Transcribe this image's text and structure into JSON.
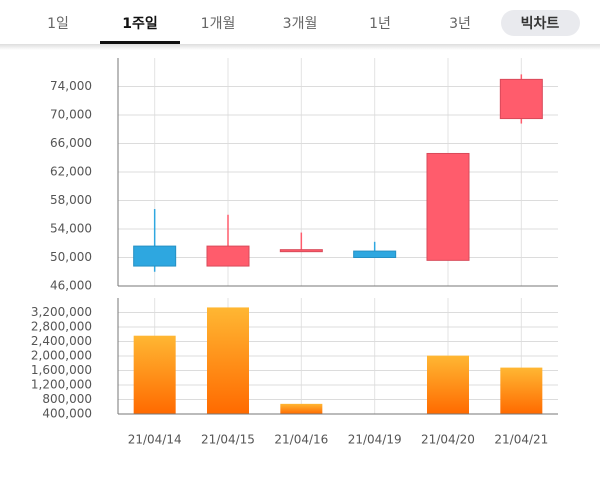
{
  "tabs": [
    "1일",
    "1주일",
    "1개월",
    "3개월",
    "1년",
    "3년",
    "빅차트"
  ],
  "active_tab": 1,
  "chart_data": [
    {
      "type": "candlestick",
      "open": [
        51600,
        48800,
        50900,
        50900,
        49600,
        69500
      ],
      "high": [
        56800,
        56000,
        53500,
        52200,
        64600,
        75700
      ],
      "low": [
        48000,
        48800,
        50800,
        50000,
        49600,
        68800
      ],
      "close": [
        48800,
        51600,
        51100,
        50000,
        64600,
        75000
      ],
      "up_color": "#ff5c6c",
      "down_color": "#2ea7e0",
      "ylim": [
        46000,
        78000
      ],
      "yticks": [
        {
          "value": 46000,
          "label": "46,000"
        },
        {
          "value": 50000,
          "label": "50,000"
        },
        {
          "value": 54000,
          "label": "54,000"
        },
        {
          "value": 58000,
          "label": "58,000"
        },
        {
          "value": 62000,
          "label": "62,000"
        },
        {
          "value": 66000,
          "label": "66,000"
        },
        {
          "value": 70000,
          "label": "70,000"
        },
        {
          "value": 74000,
          "label": "74,000"
        }
      ],
      "grid": true
    },
    {
      "type": "bar",
      "categories": [
        "21/04/14",
        "21/04/15",
        "21/04/16",
        "21/04/19",
        "21/04/20",
        "21/04/21"
      ],
      "values": [
        2560000,
        3340000,
        680000,
        380000,
        2010000,
        1680000
      ],
      "color": "#ff8c1a",
      "ylim": [
        400000,
        3600000
      ],
      "yticks": [
        {
          "value": 400000,
          "label": "400,000"
        },
        {
          "value": 800000,
          "label": "800,000"
        },
        {
          "value": 1200000,
          "label": "1,200,000"
        },
        {
          "value": 1600000,
          "label": "1,600,000"
        },
        {
          "value": 2000000,
          "label": "2,000,000"
        },
        {
          "value": 2400000,
          "label": "2,400,000"
        },
        {
          "value": 2800000,
          "label": "2,800,000"
        },
        {
          "value": 3200000,
          "label": "3,200,000"
        }
      ],
      "grid": true
    }
  ]
}
